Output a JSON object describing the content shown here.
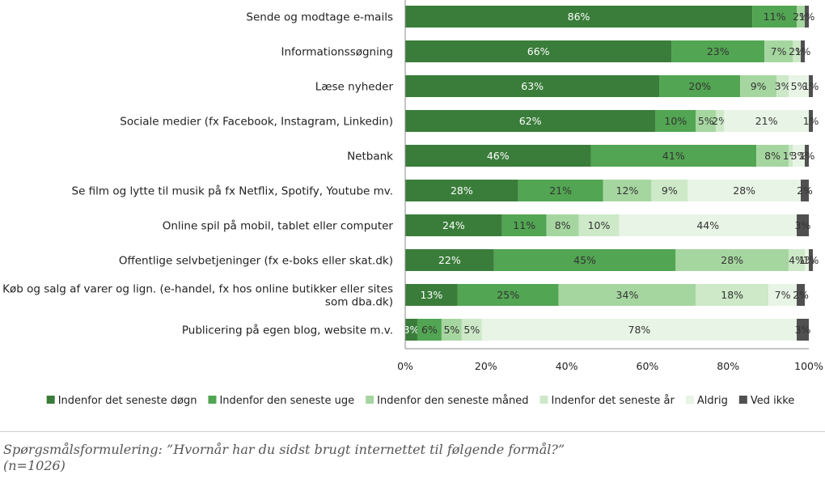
{
  "chart_data": {
    "type": "bar",
    "orientation": "horizontal",
    "stacked": true,
    "categories": [
      [
        "Sende og modtage e-mails"
      ],
      [
        "Informationssøgning"
      ],
      [
        "Læse nyheder"
      ],
      [
        "Sociale medier (fx Facebook, Instagram, Linkedin)"
      ],
      [
        "Netbank"
      ],
      [
        "Se film og lytte til musik på fx Netflix, Spotify, Youtube mv."
      ],
      [
        "Online spil på mobil, tablet eller computer"
      ],
      [
        "Offentlige selvbetjeninger (fx e-boks eller skat.dk)"
      ],
      [
        "Køb og salg af varer og lign. (e-handel, fx hos online butikker eller sites",
        "som dba.dk)"
      ],
      [
        "Publicering på egen blog, website m.v."
      ]
    ],
    "series": [
      {
        "name": "Indenfor det seneste døgn",
        "color": "#3a7d3a",
        "values": [
          86,
          66,
          63,
          62,
          46,
          28,
          24,
          22,
          13,
          3
        ]
      },
      {
        "name": "Indenfor den seneste uge",
        "color": "#52a552",
        "values": [
          11,
          23,
          20,
          10,
          41,
          21,
          11,
          45,
          25,
          6
        ]
      },
      {
        "name": "Indenfor den seneste måned",
        "color": "#a6d6a0",
        "values": [
          2,
          7,
          9,
          5,
          8,
          12,
          8,
          28,
          34,
          5
        ]
      },
      {
        "name": "Indenfor det seneste år",
        "color": "#cde9c8",
        "values": [
          0,
          2,
          3,
          2,
          1,
          9,
          10,
          4,
          18,
          5
        ]
      },
      {
        "name": "Aldrig",
        "color": "#e8f4e5",
        "values": [
          0,
          0,
          5,
          21,
          3,
          28,
          44,
          1,
          7,
          78
        ]
      },
      {
        "name": "Ved ikke",
        "color": "#505050",
        "values": [
          1,
          1,
          1,
          1,
          1,
          2,
          3,
          1,
          2,
          3
        ]
      }
    ],
    "label_colors": [
      "#ffffff",
      "#333333",
      "#333333",
      "#333333",
      "#333333",
      "#333333"
    ],
    "xlim": [
      0,
      100
    ],
    "xticks": [
      "0%",
      "20%",
      "40%",
      "60%",
      "80%",
      "100%"
    ],
    "value_suffix": "%",
    "legend_position": "bottom",
    "grid": false
  },
  "footnote": {
    "line1": "Spørgsmålsformulering: ”Hvornår har du sidst brugt internettet til følgende formål?”",
    "line2": "(n=1026)"
  }
}
